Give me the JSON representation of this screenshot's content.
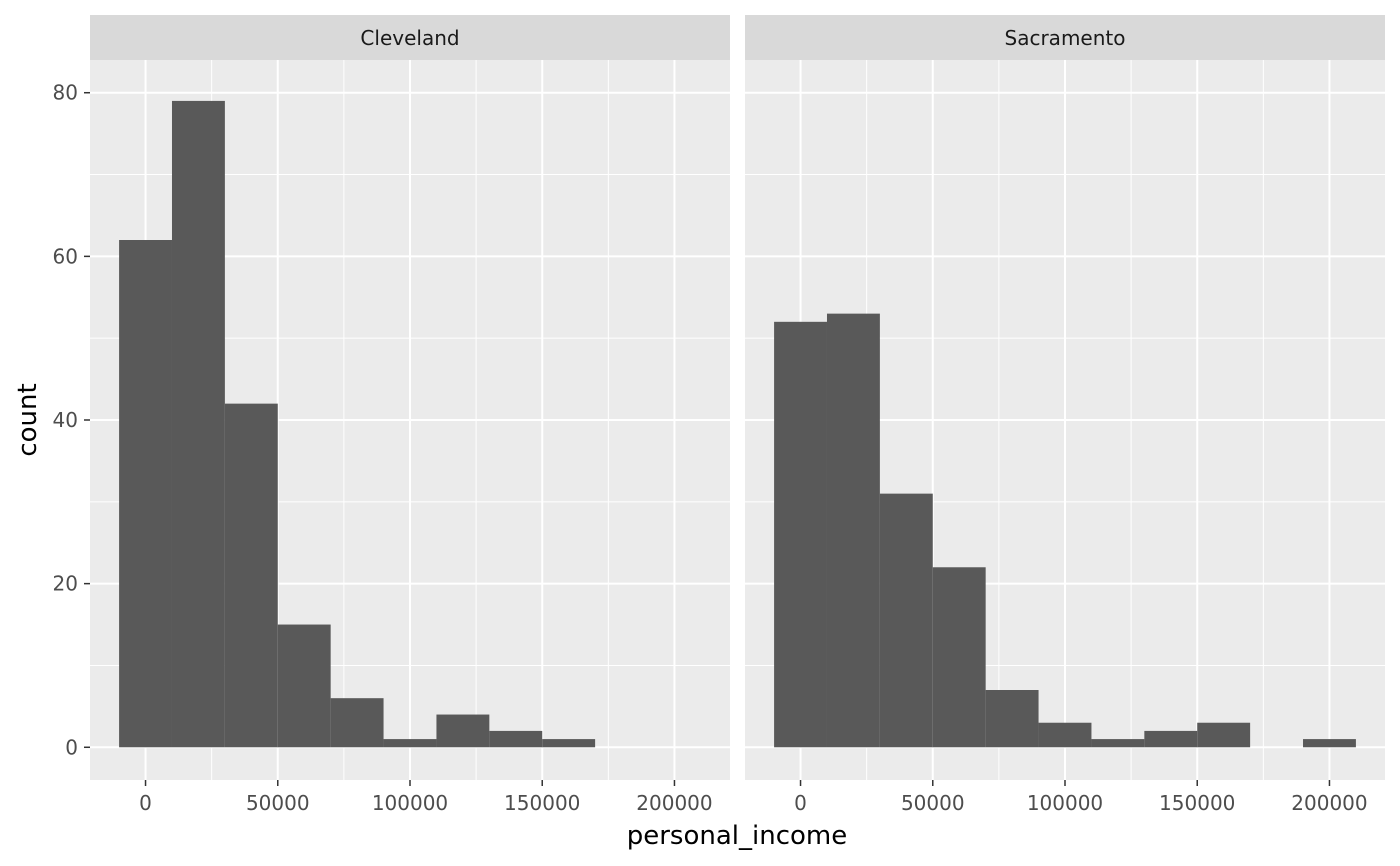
{
  "chart_data": {
    "type": "bar",
    "subtype": "histogram-faceted",
    "xlabel": "personal_income",
    "ylabel": "count",
    "ylim": [
      -4,
      84
    ],
    "xlim": [
      -21000,
      221000
    ],
    "x_ticks": [
      0,
      50000,
      100000,
      150000,
      200000
    ],
    "x_tick_labels": [
      "0",
      "50000",
      "100000",
      "150000",
      "200000"
    ],
    "y_ticks": [
      0,
      20,
      40,
      60,
      80
    ],
    "y_tick_labels": [
      "0",
      "20",
      "40",
      "60",
      "80"
    ],
    "bin_width": 20000,
    "bar_color": "#595959",
    "panel_background": "#ebebeb",
    "strip_background": "#d9d9d9",
    "grid": true,
    "facets": [
      {
        "label": "Cleveland",
        "bins": [
          {
            "center": 0,
            "count": 62
          },
          {
            "center": 20000,
            "count": 79
          },
          {
            "center": 40000,
            "count": 42
          },
          {
            "center": 60000,
            "count": 15
          },
          {
            "center": 80000,
            "count": 6
          },
          {
            "center": 100000,
            "count": 1
          },
          {
            "center": 120000,
            "count": 4
          },
          {
            "center": 140000,
            "count": 2
          },
          {
            "center": 160000,
            "count": 1
          }
        ]
      },
      {
        "label": "Sacramento",
        "bins": [
          {
            "center": 0,
            "count": 52
          },
          {
            "center": 20000,
            "count": 53
          },
          {
            "center": 40000,
            "count": 31
          },
          {
            "center": 60000,
            "count": 22
          },
          {
            "center": 80000,
            "count": 7
          },
          {
            "center": 100000,
            "count": 3
          },
          {
            "center": 120000,
            "count": 1
          },
          {
            "center": 140000,
            "count": 2
          },
          {
            "center": 160000,
            "count": 3
          },
          {
            "center": 180000,
            "count": 0
          },
          {
            "center": 200000,
            "count": 1
          }
        ]
      }
    ]
  }
}
